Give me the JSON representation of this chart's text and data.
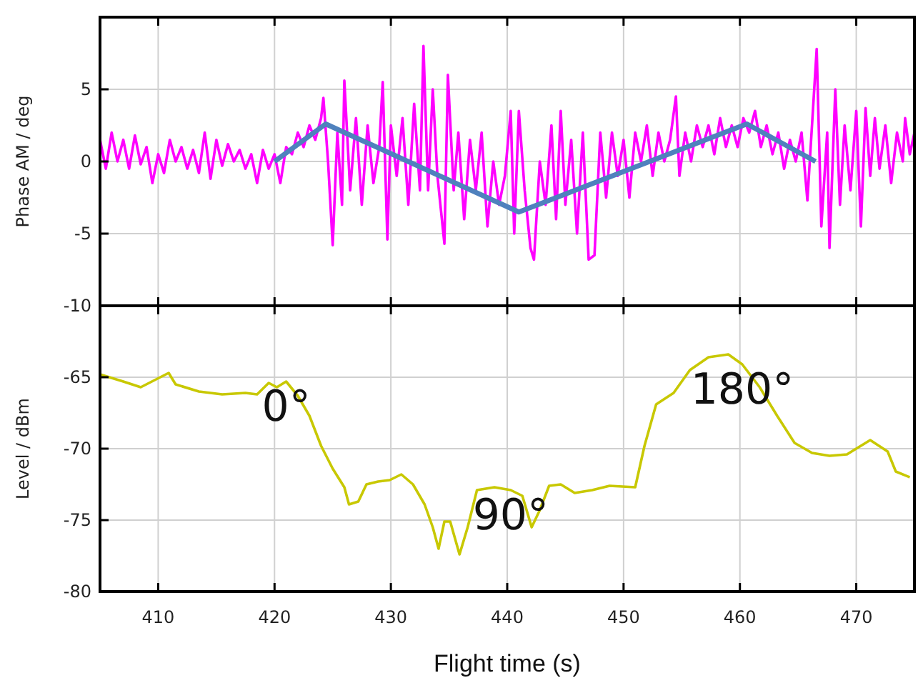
{
  "chart_data": [
    {
      "type": "line",
      "ylabel": "Phase AM / deg",
      "xlim": [
        405,
        475
      ],
      "xticks": [
        410,
        420,
        430,
        440,
        450,
        460,
        470
      ],
      "ylim": [
        -10,
        10
      ],
      "yticks": [
        -10,
        -5,
        0,
        5
      ],
      "tick_labels": "y",
      "grid": true,
      "series": [
        {
          "color": "#ff00ff",
          "x": [
            405,
            405.5,
            406,
            406.5,
            407,
            407.5,
            408,
            408.5,
            409,
            409.5,
            410,
            410.5,
            411,
            411.5,
            412,
            412.5,
            413,
            413.5,
            414,
            414.5,
            415,
            415.5,
            416,
            416.5,
            417,
            417.5,
            418,
            418.5,
            419,
            419.5,
            420,
            420.5,
            421,
            421.5,
            422,
            422.5,
            423,
            423.5,
            424,
            424.2,
            424.6,
            425,
            425.4,
            425.8,
            426,
            426.5,
            427,
            427.5,
            428,
            428.5,
            429,
            429.3,
            429.7,
            430,
            430.5,
            431,
            431.5,
            432,
            432.5,
            432.8,
            433.2,
            433.6,
            434,
            434.6,
            434.9,
            435.4,
            435.8,
            436.3,
            436.8,
            437.3,
            437.8,
            438.3,
            438.8,
            439.3,
            439.8,
            440.3,
            440.6,
            441,
            441.5,
            442,
            442.3,
            442.8,
            443.3,
            443.8,
            444.2,
            444.6,
            445,
            445.5,
            446,
            446.5,
            447,
            447.5,
            448,
            448.5,
            449,
            449.5,
            450,
            450.5,
            451,
            451.5,
            452,
            452.5,
            453,
            453.5,
            454,
            454.5,
            454.8,
            455.3,
            455.8,
            456.3,
            456.8,
            457.3,
            457.8,
            458.3,
            458.8,
            459.3,
            459.8,
            460.3,
            460.8,
            461.3,
            461.8,
            462.3,
            462.8,
            463.3,
            463.8,
            464.3,
            464.8,
            465.3,
            465.8,
            466.6,
            467,
            467.5,
            467.7,
            468.2,
            468.6,
            469,
            469.5,
            470,
            470.4,
            470.8,
            471.2,
            471.6,
            472,
            472.5,
            473,
            473.5,
            474,
            474.2,
            474.6,
            475
          ],
          "values": [
            1.5,
            -0.5,
            2,
            0,
            1.5,
            -0.5,
            1.8,
            -0.2,
            1,
            -1.5,
            0.5,
            -0.8,
            1.5,
            0,
            1,
            -0.5,
            0.8,
            -0.8,
            2,
            -1.2,
            1.5,
            -0.3,
            1.2,
            0,
            0.8,
            -0.5,
            0.5,
            -1.5,
            0.8,
            -0.5,
            0.5,
            -1.5,
            1,
            0.5,
            2,
            1,
            2.5,
            1.5,
            3,
            4.4,
            0,
            -5.8,
            2,
            -3,
            5.6,
            -2,
            3,
            -3,
            2.5,
            -1.5,
            1,
            5.5,
            -5.4,
            2.5,
            -1,
            3,
            -3,
            4,
            -2,
            8,
            -2,
            5,
            -1,
            -5.7,
            6,
            -2,
            2,
            -4,
            1.5,
            -2,
            2,
            -4.5,
            0,
            -3,
            -1,
            3.5,
            -5,
            3.5,
            -2,
            -6,
            -6.8,
            0,
            -3,
            2.5,
            -4,
            3.5,
            -3,
            1.5,
            -5,
            2,
            -6.8,
            -6.5,
            2,
            -2.5,
            2,
            -1,
            1.5,
            -2.5,
            2,
            0,
            2.5,
            -1,
            2,
            0,
            1.5,
            4.5,
            -1,
            2,
            0,
            2.5,
            1,
            2.5,
            0.5,
            3,
            1,
            2.5,
            1,
            3,
            2,
            3.5,
            1,
            2.5,
            0.5,
            2,
            -0.5,
            1.5,
            0,
            2,
            -2.7,
            7.8,
            -4.5,
            2,
            -6,
            5,
            -3,
            2.5,
            -2,
            3.5,
            -4.5,
            3.7,
            -1,
            3,
            -0.5,
            2.5,
            -1.5,
            2,
            0,
            3,
            0.5,
            2
          ]
        },
        {
          "color": "#4f81bd",
          "x": [
            420,
            424.4,
            441,
            460.6,
            466.5
          ],
          "values": [
            0,
            2.6,
            -3.5,
            2.6,
            0
          ]
        }
      ]
    },
    {
      "type": "line",
      "xlabel": "Flight time (s)",
      "ylabel": "Level / dBm",
      "xlim": [
        405,
        475
      ],
      "xticks": [
        410,
        420,
        430,
        440,
        450,
        460,
        470
      ],
      "ylim": [
        -80,
        -60
      ],
      "yticks": [
        -80,
        -75,
        -70,
        -65
      ],
      "grid": true,
      "series": [
        {
          "color": "#c8c800",
          "x": [
            405,
            407,
            408.5,
            410.9,
            411.5,
            413.5,
            415.5,
            417.5,
            418.5,
            419.5,
            420.2,
            421,
            422,
            423,
            424,
            425,
            426,
            426.4,
            427.2,
            427.9,
            428.9,
            429.9,
            430.9,
            431.9,
            432.9,
            433.6,
            434.1,
            434.6,
            435.1,
            435.9,
            436.6,
            437.4,
            438.9,
            440.3,
            441.3,
            442.1,
            442.8,
            443.6,
            444.6,
            445.8,
            447.3,
            448.8,
            451,
            451.8,
            452.8,
            454.3,
            455.7,
            457.3,
            459,
            460.2,
            461.7,
            463.2,
            464.7,
            466.2,
            467.7,
            469.2,
            471.2,
            472.7,
            473.4,
            474.6
          ],
          "values": [
            -64.8,
            -65.3,
            -65.7,
            -64.7,
            -65.5,
            -66,
            -66.2,
            -66.1,
            -66.2,
            -65.4,
            -65.7,
            -65.3,
            -66.3,
            -67.7,
            -69.8,
            -71.4,
            -72.7,
            -73.9,
            -73.7,
            -72.5,
            -72.3,
            -72.2,
            -71.8,
            -72.5,
            -73.9,
            -75.5,
            -77,
            -75.1,
            -75.1,
            -77.4,
            -75.5,
            -72.9,
            -72.7,
            -72.9,
            -73.3,
            -75.5,
            -74.3,
            -72.6,
            -72.5,
            -73.1,
            -72.9,
            -72.6,
            -72.7,
            -69.8,
            -66.9,
            -66.1,
            -64.5,
            -63.6,
            -63.4,
            -64.1,
            -65.7,
            -67.7,
            -69.6,
            -70.3,
            -70.5,
            -70.4,
            -69.4,
            -70.2,
            -71.6,
            -72
          ]
        }
      ],
      "annotations": [
        {
          "text": "0°",
          "x": 421,
          "y": -65.3
        },
        {
          "text": "90°",
          "x": 440.3,
          "y": -72.9
        },
        {
          "text": "180°",
          "x": 460.2,
          "y": -64.1
        }
      ]
    }
  ]
}
